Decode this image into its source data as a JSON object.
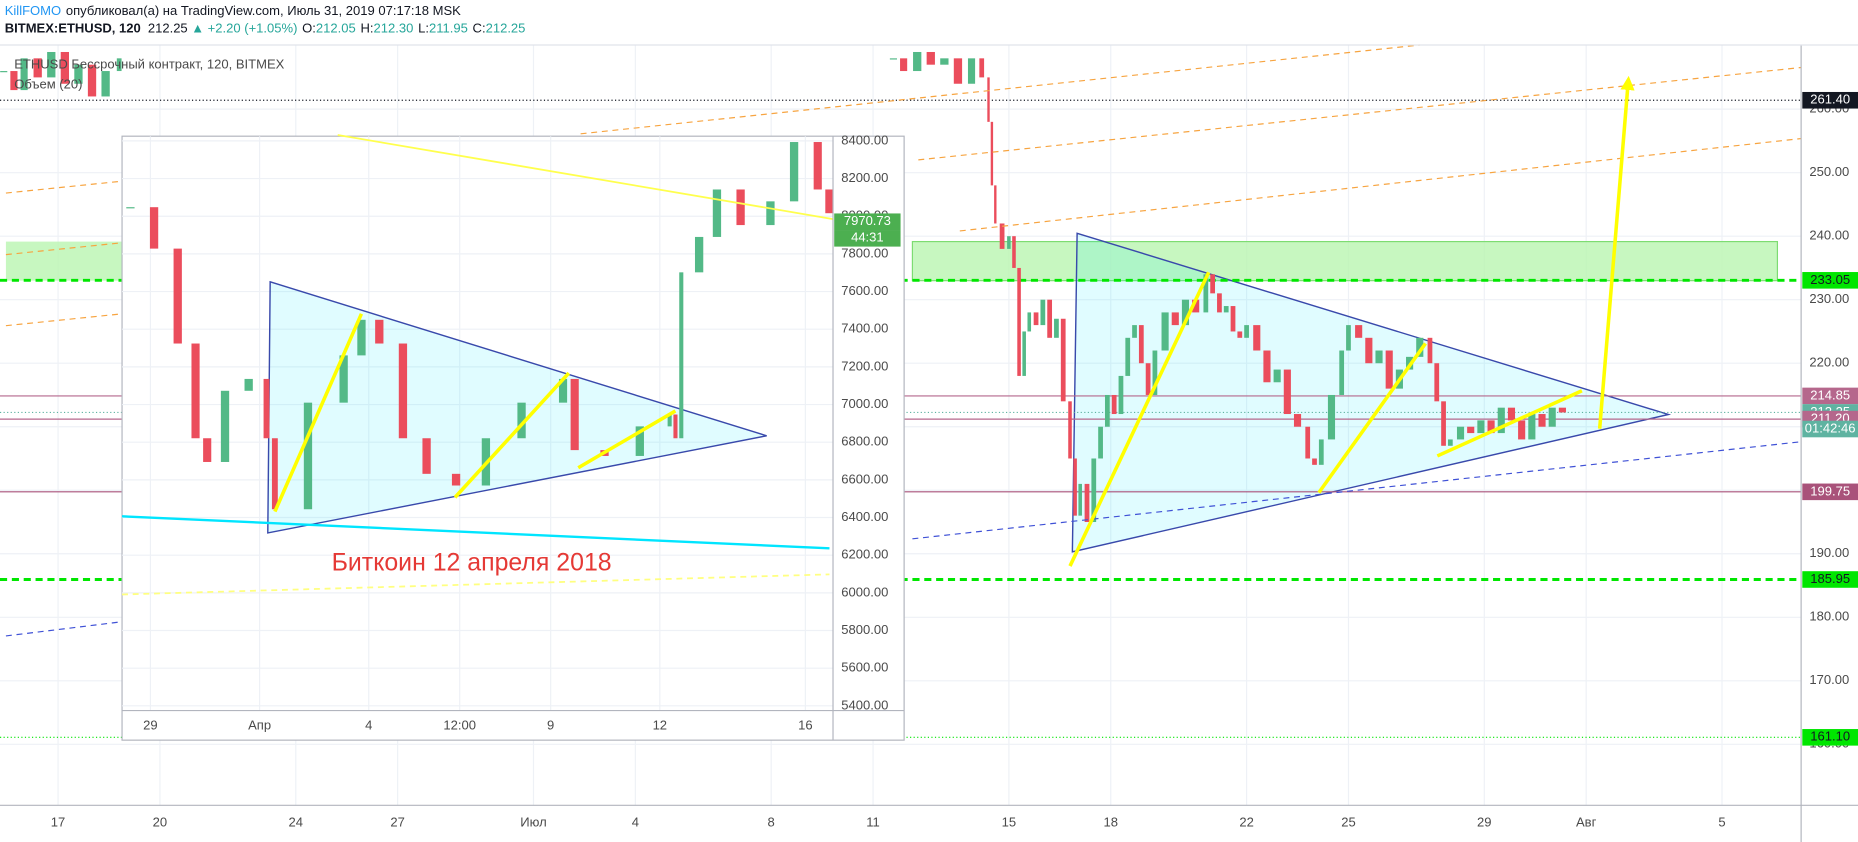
{
  "header": {
    "author": "KillFOMO",
    "published": "опубликовал(а) на TradingView.com, Июль 31, 2019 07:17:18 MSK",
    "symbol": "BITMEX:ETHUSD, 120",
    "last": "212.25",
    "direction": "▲",
    "change": "+2.20 (+1.05%)",
    "ohlc": [
      {
        "label": "O:",
        "value": "212.05"
      },
      {
        "label": "H:",
        "value": "212.30"
      },
      {
        "label": "L:",
        "value": "211.95"
      },
      {
        "label": "C:",
        "value": "212.25"
      }
    ]
  },
  "chart_data": [
    {
      "type": "candlestick",
      "title": "ETHUSD Бессрочный контракт, 120, BITMEX",
      "volume_label": "Объем (20)",
      "x": [
        -1.6,
        -1.3,
        -1.0,
        -0.6,
        -0.2,
        0.2,
        0.6,
        1.0,
        1.4,
        1.8,
        2.0,
        24.6,
        24.9,
        25.3,
        25.7,
        26.1,
        26.5,
        26.9,
        27.2,
        27.4,
        27.5,
        27.6,
        27.8,
        28.0,
        28.15,
        28.3,
        28.45,
        28.6,
        28.8,
        29.0,
        29.2,
        29.4,
        29.6,
        29.8,
        29.95,
        30.1,
        30.3,
        30.5,
        30.7,
        30.9,
        31.1,
        31.3,
        31.5,
        31.7,
        31.9,
        32.1,
        32.3,
        32.6,
        32.9,
        33.2,
        33.5,
        33.8,
        34.0,
        34.2,
        34.4,
        34.6,
        34.8,
        35.0,
        35.3,
        35.6,
        35.9,
        36.2,
        36.5,
        36.8,
        37.0,
        37.2,
        37.5,
        37.8,
        38.0,
        38.3,
        38.6,
        38.9,
        39.2,
        39.5,
        39.8,
        40.1,
        40.4,
        40.6,
        40.8,
        41.0,
        41.3,
        41.6,
        41.9,
        42.2,
        42.5,
        42.8,
        43.1,
        43.4,
        43.7,
        44.0,
        44.3
      ],
      "values": [
        266,
        263,
        268,
        265,
        269,
        264,
        267,
        262,
        266,
        268,
        null,
        268,
        266,
        269,
        267,
        268,
        264,
        268,
        265,
        258,
        248,
        242,
        238,
        240,
        235,
        218,
        225,
        228,
        226,
        230,
        224,
        227,
        214,
        205,
        196,
        201,
        195,
        205,
        210,
        215,
        212,
        218,
        224,
        226,
        220,
        215,
        222,
        228,
        226,
        230,
        228,
        234,
        231,
        228,
        229,
        225,
        224,
        226,
        222,
        217,
        219,
        212,
        210,
        205,
        204,
        208,
        215,
        222,
        226,
        224,
        220,
        222,
        216,
        219,
        221,
        224,
        220,
        214,
        207,
        208,
        210,
        209,
        211,
        209,
        213,
        211,
        208,
        212,
        210,
        213,
        212.25
      ],
      "up_color": "#53b987",
      "down_color": "#eb4d5c",
      "grid": true,
      "xlim": [
        -1.71,
        51.33
      ],
      "xticks": [
        {
          "value": 0,
          "label": "17"
        },
        {
          "value": 3,
          "label": "20"
        },
        {
          "value": 7,
          "label": "24"
        },
        {
          "value": 10,
          "label": "27"
        },
        {
          "value": 14,
          "label": "Июл"
        },
        {
          "value": 17,
          "label": "4"
        },
        {
          "value": 21,
          "label": "8"
        },
        {
          "value": 24,
          "label": "11"
        },
        {
          "value": 28,
          "label": "15"
        },
        {
          "value": 31,
          "label": "18"
        },
        {
          "value": 35,
          "label": "22"
        },
        {
          "value": 38,
          "label": "25"
        },
        {
          "value": 42,
          "label": "29"
        },
        {
          "value": 45,
          "label": "Авг"
        },
        {
          "value": 49,
          "label": "5"
        }
      ],
      "ylim": [
        150.4,
        270.1
      ],
      "yticks": [
        {
          "value": 160,
          "label": "160.00"
        },
        {
          "value": 170,
          "label": "170.00"
        },
        {
          "value": 180,
          "label": "180.00"
        },
        {
          "value": 190,
          "label": "190.00"
        },
        {
          "value": 200,
          "label": "200.00"
        },
        {
          "value": 210,
          "label": "210.00"
        },
        {
          "value": 220,
          "label": "220.00"
        },
        {
          "value": 230,
          "label": "230.00"
        },
        {
          "value": 240,
          "label": "240.00"
        },
        {
          "value": 250,
          "label": "250.00"
        },
        {
          "value": 260,
          "label": "260.00"
        }
      ],
      "price_labels": [
        {
          "value": 261.4,
          "label": "261.40",
          "color": "#131722",
          "text_color": "#ffffff",
          "line": "dotted"
        },
        {
          "value": 233.05,
          "label": "233.05",
          "color": "#00e600",
          "text_color": "#131722",
          "line": "dashed"
        },
        {
          "value": 214.85,
          "label": "214.85",
          "color": "#b5678c",
          "text_color": "#ffffff",
          "line": "solid"
        },
        {
          "value": 212.25,
          "label": "212.25",
          "color": "#5fb3a1",
          "text_color": "#ffffff",
          "line": "dotted"
        },
        {
          "value": 211.2,
          "label": "211.20",
          "color": "#b5678c",
          "text_color": "#ffffff",
          "line": "solid"
        },
        {
          "value": 199.75,
          "label": "199.75",
          "color": "#a9527a",
          "text_color": "#ffffff",
          "line": "solid"
        },
        {
          "value": 185.95,
          "label": "185.95",
          "color": "#00e600",
          "text_color": "#131722",
          "line": "dashed"
        },
        {
          "value": 161.1,
          "label": "161.10",
          "color": "#00e600",
          "text_color": "#131722",
          "line": "dotted"
        }
      ],
      "countdown": "01:42:46"
    },
    {
      "type": "candlestick",
      "annotation": "Биткоин 12 апреля 2018",
      "x": [
        -0.55,
        0.1,
        0.75,
        1.24,
        1.56,
        2.05,
        2.7,
        3.19,
        3.42,
        4.33,
        5.31,
        5.8,
        6.29,
        6.94,
        7.59,
        8.4,
        9.22,
        10.2,
        11.34,
        11.66,
        12.48,
        13.45,
        14.27,
        14.43,
        14.59,
        15.08,
        15.57,
        16.22,
        17.04,
        17.69,
        18.34,
        18.66
      ],
      "values": [
        8048,
        7828,
        7324,
        6821,
        6695,
        7073,
        7136,
        6821,
        6444,
        7010,
        7261,
        7450,
        7324,
        6821,
        6632,
        6570,
        6821,
        7010,
        7136,
        6758,
        6727,
        6884,
        6947,
        6821,
        7702,
        7890,
        8142,
        7953,
        8079,
        8394,
        8142,
        8016
      ],
      "up_color": "#53b987",
      "down_color": "#eb4d5c",
      "grid": true,
      "xlim": [
        -0.78,
        18.76
      ],
      "xticks": [
        {
          "value": 0,
          "label": "29"
        },
        {
          "value": 3,
          "label": "Апр"
        },
        {
          "value": 6,
          "label": "4"
        },
        {
          "value": 8.5,
          "label": "12:00"
        },
        {
          "value": 11,
          "label": "9"
        },
        {
          "value": 14,
          "label": "12"
        },
        {
          "value": 18,
          "label": "16"
        }
      ],
      "ylim": [
        5375,
        8425
      ],
      "yticks": [
        {
          "value": 5400,
          "label": "5400.00"
        },
        {
          "value": 5600,
          "label": "5600.00"
        },
        {
          "value": 5800,
          "label": "5800.00"
        },
        {
          "value": 6000,
          "label": "6000.00"
        },
        {
          "value": 6200,
          "label": "6200.00"
        },
        {
          "value": 6400,
          "label": "6400.00"
        },
        {
          "value": 6600,
          "label": "6600.00"
        },
        {
          "value": 6800,
          "label": "6800.00"
        },
        {
          "value": 7000,
          "label": "7000.00"
        },
        {
          "value": 7200,
          "label": "7200.00"
        },
        {
          "value": 7400,
          "label": "7400.00"
        },
        {
          "value": 7600,
          "label": "7600.00"
        },
        {
          "value": 7800,
          "label": "7800.00"
        },
        {
          "value": 8000,
          "label": "8000.00"
        },
        {
          "value": 8200,
          "label": "8200.00"
        },
        {
          "value": 8400,
          "label": "8400.00"
        }
      ],
      "price_labels": [
        {
          "value": 7970.73,
          "label": "7970.73",
          "color": "#4caf50",
          "text_color": "#ffffff",
          "line": "none"
        }
      ],
      "countdown": "44:31"
    }
  ]
}
